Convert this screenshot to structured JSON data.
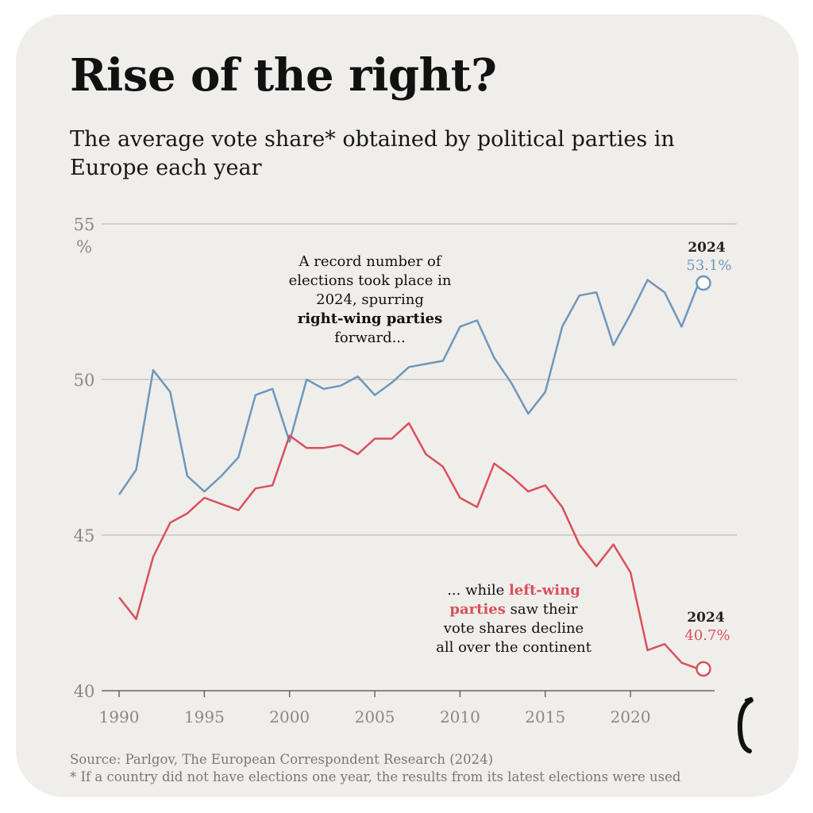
{
  "title": "Rise of the right?",
  "subtitle": "The average vote share* obtained by political parties in Europe each year",
  "colors": {
    "right": "#6e97bb",
    "left": "#d9505c",
    "grid": "#c9c6c2",
    "background": "#f0eeeb",
    "tick": "#888888"
  },
  "chart_data": {
    "type": "line",
    "title": "Rise of the right?",
    "x": [
      1990,
      1991,
      1992,
      1993,
      1994,
      1995,
      1996,
      1997,
      1998,
      1999,
      2000,
      2001,
      2002,
      2003,
      2004,
      2005,
      2006,
      2007,
      2008,
      2009,
      2010,
      2011,
      2012,
      2013,
      2014,
      2015,
      2016,
      2017,
      2018,
      2019,
      2020,
      2021,
      2022,
      2023,
      2024
    ],
    "series": [
      {
        "name": "right-wing parties",
        "color": "#6e97bb",
        "values": [
          46.3,
          47.1,
          50.3,
          49.6,
          46.9,
          46.4,
          46.9,
          47.5,
          49.5,
          49.7,
          48.0,
          50.0,
          49.7,
          49.8,
          50.1,
          49.5,
          49.9,
          50.4,
          50.5,
          50.6,
          51.7,
          51.9,
          50.7,
          49.9,
          48.9,
          49.6,
          51.7,
          52.7,
          52.8,
          51.1,
          52.1,
          53.2,
          52.8,
          51.7,
          53.1
        ]
      },
      {
        "name": "left-wing parties",
        "color": "#d9505c",
        "values": [
          43.0,
          42.3,
          44.3,
          45.4,
          45.7,
          46.2,
          46.0,
          45.8,
          46.5,
          46.6,
          48.2,
          47.8,
          47.8,
          47.9,
          47.6,
          48.1,
          48.1,
          48.6,
          47.6,
          47.2,
          46.2,
          45.9,
          47.3,
          46.9,
          46.4,
          46.6,
          45.9,
          44.7,
          44.0,
          44.7,
          43.8,
          41.3,
          41.5,
          40.9,
          40.7
        ]
      }
    ],
    "ylim": [
      40,
      55
    ],
    "yticks": [
      "40",
      "45",
      "50",
      "55"
    ],
    "y_unit": "%",
    "xticks": [
      "1990",
      "1995",
      "2000",
      "2005",
      "2010",
      "2015",
      "2020"
    ],
    "grid": true,
    "legend": "none",
    "end_labels": {
      "right": {
        "year": "2024",
        "value": "53.1%"
      },
      "left": {
        "year": "2024",
        "value": "40.7%"
      }
    },
    "annotations": {
      "right": {
        "lines": [
          "A record number of",
          "elections took place in",
          "2024, spurring"
        ],
        "highlight": "right-wing parties",
        "tail": "forward..."
      },
      "left": {
        "line1_prefix": "... while ",
        "line1_highlight": "left-wing",
        "line2_highlight": "parties",
        "line2_suffix": " saw their",
        "line3": "vote shares decline",
        "line4": "all over the continent"
      }
    }
  },
  "source": "Source: Parlgov, The European Correspondent Research (2024)",
  "footnote": "* If a country did not have elections one year, the results from its latest elections were used",
  "logo": "european-correspondent-logo"
}
